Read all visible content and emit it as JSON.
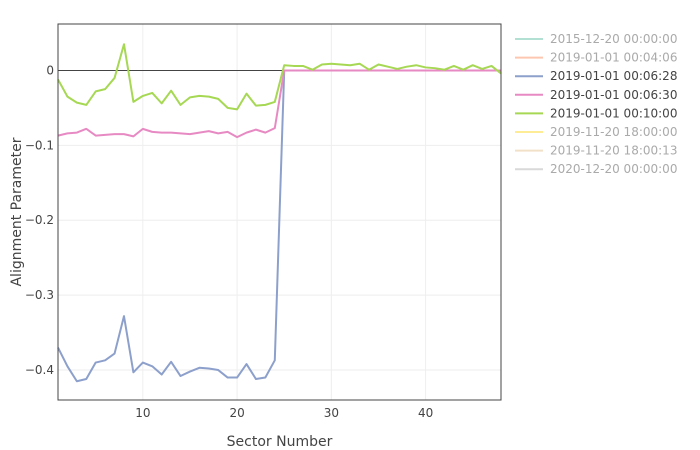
{
  "chart_data": {
    "type": "line",
    "title": "",
    "xlabel": "Sector Number",
    "ylabel": "Alignment Parameter",
    "xlim": [
      1,
      48
    ],
    "ylim": [
      -0.44,
      0.062
    ],
    "xticks": [
      10,
      20,
      30,
      40
    ],
    "yticks": [
      0,
      -0.1,
      -0.2,
      -0.3,
      -0.4
    ],
    "ytick_labels": [
      "0",
      "−0.1",
      "−0.2",
      "−0.3",
      "−0.4"
    ],
    "grid": true,
    "legend_position": "right",
    "series": [
      {
        "name": "2015-12-20 00:00:00",
        "color": "#66c2a5",
        "visible": false,
        "values": []
      },
      {
        "name": "2019-01-01 00:04:06",
        "color": "#fc8d62",
        "visible": false,
        "values": []
      },
      {
        "name": "2019-01-01 00:06:28",
        "color": "#8da0cb",
        "visible": true,
        "values": [
          -0.37,
          -0.395,
          -0.415,
          -0.412,
          -0.39,
          -0.387,
          -0.378,
          -0.328,
          -0.403,
          -0.39,
          -0.395,
          -0.406,
          -0.389,
          -0.408,
          -0.402,
          -0.397,
          -0.398,
          -0.4,
          -0.41,
          -0.41,
          -0.392,
          -0.412,
          -0.41,
          -0.387,
          0,
          0,
          0,
          0,
          0,
          0,
          0,
          0,
          0,
          0,
          0,
          0,
          0,
          0,
          0,
          0,
          0,
          0,
          0,
          0,
          0,
          0,
          0,
          0
        ]
      },
      {
        "name": "2019-01-01 00:06:30",
        "color": "#e78ac3",
        "visible": true,
        "values": [
          -0.087,
          -0.084,
          -0.083,
          -0.078,
          -0.087,
          -0.086,
          -0.085,
          -0.085,
          -0.088,
          -0.078,
          -0.082,
          -0.083,
          -0.083,
          -0.084,
          -0.085,
          -0.083,
          -0.081,
          -0.084,
          -0.082,
          -0.089,
          -0.083,
          -0.079,
          -0.083,
          -0.077,
          0,
          0,
          0,
          0,
          0,
          0,
          0,
          0,
          0,
          0,
          0,
          0,
          0,
          0,
          0,
          0,
          0,
          0,
          0,
          0,
          0,
          0,
          0,
          0
        ]
      },
      {
        "name": "2019-01-01 00:10:00",
        "color": "#a6d854",
        "visible": true,
        "values": [
          -0.012,
          -0.035,
          -0.043,
          -0.046,
          -0.028,
          -0.025,
          -0.01,
          0.035,
          -0.042,
          -0.034,
          -0.03,
          -0.044,
          -0.027,
          -0.046,
          -0.036,
          -0.034,
          -0.035,
          -0.038,
          -0.05,
          -0.052,
          -0.031,
          -0.047,
          -0.046,
          -0.042,
          0.007,
          0.006,
          0.006,
          0.001,
          0.008,
          0.009,
          0.008,
          0.007,
          0.009,
          0.001,
          0.008,
          0.005,
          0.002,
          0.005,
          0.007,
          0.004,
          0.003,
          0.001,
          0.006,
          0.001,
          0.007,
          0.002,
          0.006,
          -0.004
        ]
      },
      {
        "name": "2019-11-20 18:00:00",
        "color": "#ffd92f",
        "visible": false,
        "values": []
      },
      {
        "name": "2019-11-20 18:00:13",
        "color": "#e5c494",
        "visible": false,
        "values": []
      },
      {
        "name": "2020-12-20 00:00:00",
        "color": "#b3b3b3",
        "visible": false,
        "values": []
      }
    ]
  }
}
